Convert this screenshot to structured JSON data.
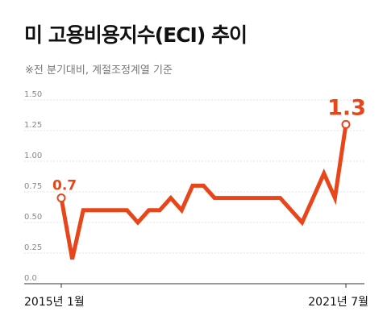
{
  "header": {
    "title": "미 고용비용지수(ECI) 추이",
    "subtitle": "※전 분기대비, 계절조정계열 기준"
  },
  "chart_data": {
    "type": "line",
    "title": "미 고용비용지수(ECI) 추이",
    "subtitle": "※전 분기대비, 계절조정계열 기준",
    "xlabel": "",
    "ylabel": "",
    "ylim": [
      0,
      1.5
    ],
    "yticks": [
      "0.0",
      "0.25",
      "0.50",
      "0.75",
      "1.00",
      "1.25",
      "1.50"
    ],
    "x_tick_labels": [
      "2015년 1월",
      "2021년 7월"
    ],
    "x": [
      "2015 Q1",
      "2015 Q2",
      "2015 Q3",
      "2015 Q4",
      "2016 Q1",
      "2016 Q2",
      "2016 Q3",
      "2016 Q4",
      "2017 Q1",
      "2017 Q2",
      "2017 Q3",
      "2017 Q4",
      "2018 Q1",
      "2018 Q2",
      "2018 Q3",
      "2018 Q4",
      "2019 Q1",
      "2019 Q2",
      "2019 Q3",
      "2019 Q4",
      "2020 Q1",
      "2020 Q2",
      "2020 Q3",
      "2020 Q4",
      "2021 Q1",
      "2021 Q2",
      "2021 Q3"
    ],
    "series": [
      {
        "name": "",
        "color": "#e8461a",
        "values": [
          0.7,
          0.2,
          0.6,
          0.6,
          0.6,
          0.6,
          0.6,
          0.5,
          0.6,
          0.6,
          0.7,
          0.6,
          0.8,
          0.8,
          0.7,
          0.7,
          0.7,
          0.7,
          0.7,
          0.7,
          0.7,
          0.6,
          0.5,
          0.7,
          0.9,
          0.7,
          1.3
        ]
      }
    ],
    "annotations": [
      {
        "index": 0,
        "text": "0.7"
      },
      {
        "index": 26,
        "text": "1.3"
      }
    ],
    "grid": true,
    "legend": "none",
    "colors": {
      "line": "#e8461a",
      "grid": "#d9d9d9",
      "axis": "#333333"
    }
  }
}
